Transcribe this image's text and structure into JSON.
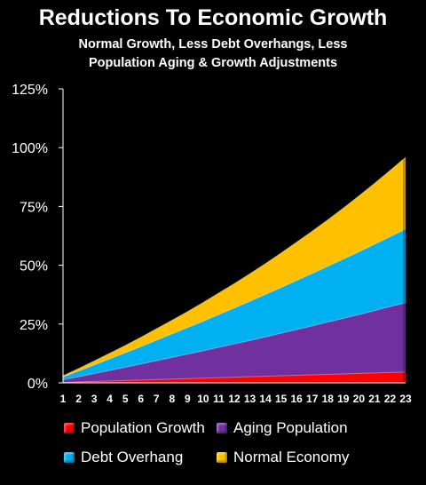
{
  "chart_data": {
    "type": "area",
    "stacked": false,
    "title": "Reductions To Economic Growth",
    "subtitle_line1": "Normal Growth, Less Debt Overhangs, Less",
    "subtitle_line2": "Population Aging & Growth Adjustments",
    "x": [
      1,
      2,
      3,
      4,
      5,
      6,
      7,
      8,
      9,
      10,
      11,
      12,
      13,
      14,
      15,
      16,
      17,
      18,
      19,
      20,
      21,
      22,
      23
    ],
    "x_tick_labels": [
      "1",
      "2",
      "3",
      "4",
      "5",
      "6",
      "7",
      "8",
      "9",
      "10",
      "11",
      "12",
      "13",
      "14",
      "15",
      "16",
      "17",
      "18",
      "19",
      "20",
      "21",
      "22",
      "23"
    ],
    "y_tick_labels": [
      "0%",
      "25%",
      "50%",
      "75%",
      "100%",
      "125%"
    ],
    "ylim": [
      0,
      125
    ],
    "series": [
      {
        "name": "Normal Economy",
        "color": "#FFC000",
        "values": [
          3.0,
          6.1,
          9.3,
          12.6,
          15.9,
          19.4,
          23.0,
          26.6,
          30.3,
          34.2,
          38.2,
          42.2,
          46.4,
          50.7,
          55.2,
          59.8,
          64.5,
          69.3,
          74.3,
          79.5,
          84.8,
          90.3,
          95.9
        ]
      },
      {
        "name": "Debt Overhang",
        "color": "#00B0F0",
        "values": [
          2.5,
          5.0,
          7.6,
          10.2,
          12.8,
          15.4,
          18.1,
          20.8,
          23.5,
          26.2,
          29.0,
          31.8,
          34.7,
          37.6,
          40.5,
          43.5,
          46.5,
          49.5,
          52.6,
          55.7,
          58.9,
          62.1,
          65.3
        ]
      },
      {
        "name": "Aging Population",
        "color": "#7030A0",
        "values": [
          1.3,
          2.6,
          3.9,
          5.3,
          6.6,
          8.0,
          9.4,
          10.8,
          12.2,
          13.6,
          15.1,
          16.5,
          18.0,
          19.5,
          21.1,
          22.6,
          24.2,
          25.8,
          27.4,
          29.0,
          30.7,
          32.4,
          34.0
        ]
      },
      {
        "name": "Population Growth",
        "color": "#FF0000",
        "values": [
          0.2,
          0.4,
          0.6,
          0.8,
          1.0,
          1.2,
          1.4,
          1.6,
          1.8,
          2.0,
          2.2,
          2.4,
          2.6,
          2.8,
          3.0,
          3.2,
          3.4,
          3.6,
          3.8,
          4.0,
          4.2,
          4.4,
          4.6
        ]
      }
    ],
    "legend": [
      {
        "name": "Population Growth",
        "color": "#FF0000"
      },
      {
        "name": "Aging Population",
        "color": "#7030A0"
      },
      {
        "name": "Debt Overhang",
        "color": "#00B0F0"
      },
      {
        "name": "Normal Economy",
        "color": "#FFC000"
      }
    ],
    "grid": false,
    "legend_position": "bottom"
  }
}
